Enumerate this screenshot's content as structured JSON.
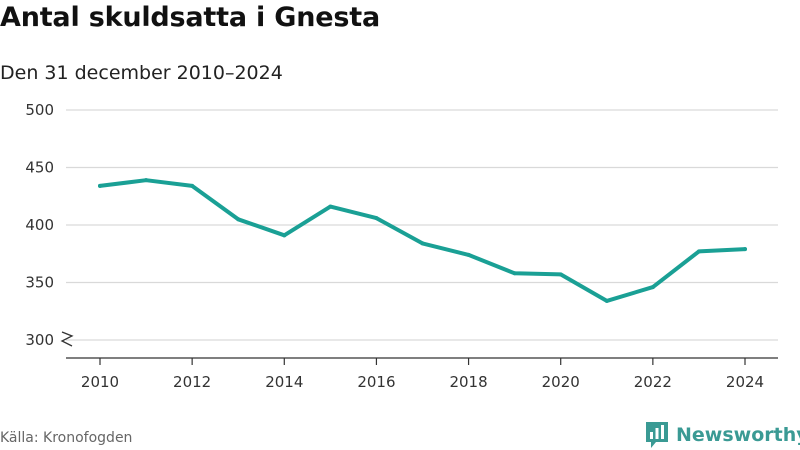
{
  "title": "Antal skuldsatta i Gnesta",
  "subtitle": "Den 31 december 2010–2024",
  "source": "Källa: Kronofogden",
  "brand": {
    "name": "Newsworthy",
    "icon": "newsworthy-logo-icon",
    "color": "#3a9a94"
  },
  "colors": {
    "line": "#1aa095",
    "grid": "#d9d9d9",
    "axis": "#333333"
  },
  "chart_data": {
    "type": "line",
    "title": "Antal skuldsatta i Gnesta",
    "subtitle": "Den 31 december 2010–2024",
    "xlabel": "",
    "ylabel": "",
    "x": [
      2010,
      2011,
      2012,
      2013,
      2014,
      2015,
      2016,
      2017,
      2018,
      2019,
      2020,
      2021,
      2022,
      2023,
      2024
    ],
    "series": [
      {
        "values": [
          434,
          439,
          434,
          405,
          391,
          416,
          406,
          384,
          374,
          358,
          357,
          334,
          346,
          377,
          379
        ]
      }
    ],
    "xticks": [
      "2010",
      "2012",
      "2014",
      "2016",
      "2018",
      "2020",
      "2022",
      "2024"
    ],
    "yticks": [
      "300",
      "350",
      "400",
      "450",
      "500"
    ],
    "ylim": [
      300,
      500
    ],
    "y_axis_break": true,
    "grid": true,
    "legend": "none"
  }
}
